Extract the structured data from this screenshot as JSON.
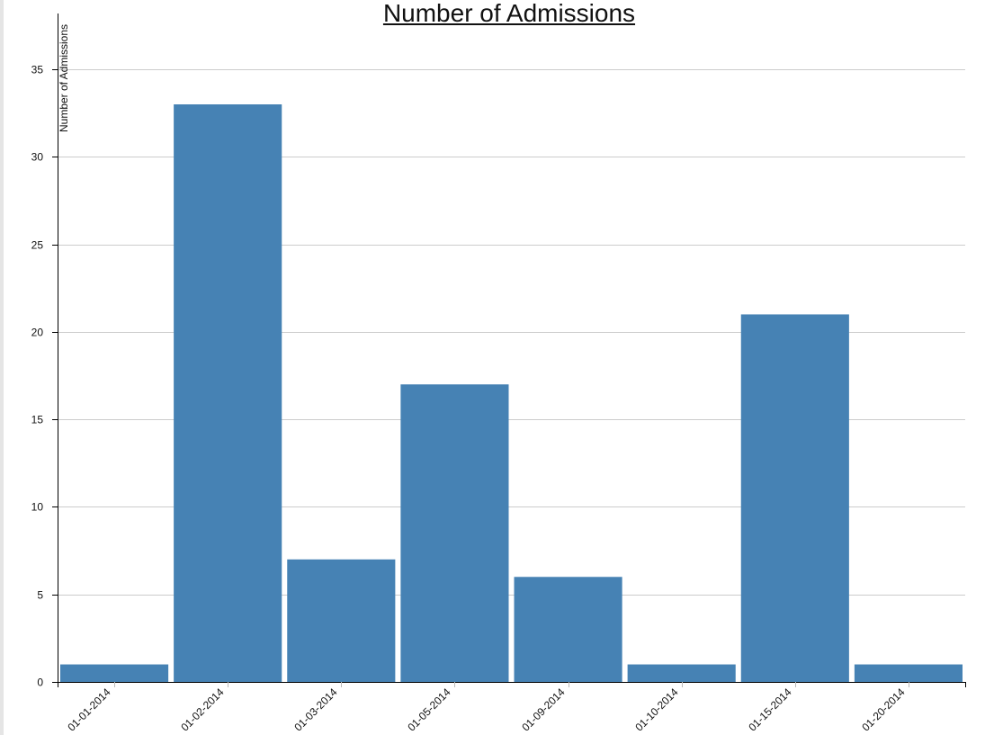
{
  "chart_data": {
    "type": "bar",
    "title": "Number of Admissions",
    "xlabel": "",
    "ylabel": "Number of Admissions",
    "categories": [
      "01-01-2014",
      "01-02-2014",
      "01-03-2014",
      "01-05-2014",
      "01-09-2014",
      "01-10-2014",
      "01-15-2014",
      "01-20-2014"
    ],
    "values": [
      1,
      33,
      7,
      17,
      6,
      1,
      21,
      1
    ],
    "ylim": [
      0,
      38.5
    ],
    "yticks": [
      0,
      5,
      10,
      15,
      20,
      25,
      30,
      35
    ],
    "grid": true,
    "bar_color": "#4682b4",
    "grid_color": "#cccccc",
    "axis_color": "#000000"
  }
}
